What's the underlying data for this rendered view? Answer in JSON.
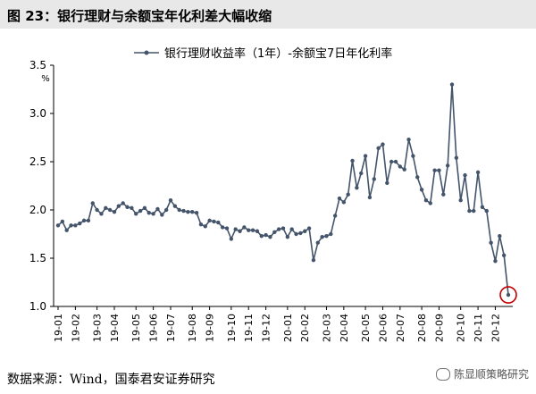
{
  "figure": {
    "title": "图 23：银行理财与余额宝年化利差大幅收缩",
    "source": "数据来源：Wind，国泰君安证券研究",
    "watermark": "陈显顺策略研究"
  },
  "chart_data": {
    "type": "line",
    "title": "",
    "ylabel": "",
    "ylabel_unit": "%",
    "ylim": [
      1.0,
      3.5
    ],
    "yticks": [
      "1.0",
      "1.5",
      "2.0",
      "2.5",
      "3.0",
      "3.5"
    ],
    "xticks": [
      "19-01",
      "19-02",
      "19-03",
      "19-04",
      "19-05",
      "19-06",
      "19-07",
      "19-08",
      "19-09",
      "19-10",
      "19-11",
      "19-12",
      "20-01",
      "20-02",
      "20-03",
      "20-04",
      "20-05",
      "20-06",
      "20-07",
      "20-08",
      "20-09",
      "20-10",
      "20-11",
      "20-12"
    ],
    "legend": "top-center",
    "grid": false,
    "highlight_last_point": true,
    "series": [
      {
        "name": "银行理财收益率（1年）-余额宝7日年化利率",
        "color": "#44546a",
        "values": [
          1.84,
          1.88,
          1.79,
          1.84,
          1.84,
          1.86,
          1.89,
          1.89,
          2.07,
          2.0,
          1.96,
          2.02,
          2.0,
          1.98,
          2.04,
          2.07,
          2.03,
          2.02,
          1.96,
          1.99,
          2.02,
          1.97,
          1.96,
          2.01,
          1.95,
          2.0,
          2.1,
          2.04,
          2.0,
          1.99,
          1.98,
          1.98,
          1.97,
          1.85,
          1.83,
          1.89,
          1.88,
          1.87,
          1.82,
          1.81,
          1.7,
          1.8,
          1.78,
          1.82,
          1.79,
          1.79,
          1.78,
          1.73,
          1.74,
          1.72,
          1.77,
          1.8,
          1.81,
          1.72,
          1.8,
          1.75,
          1.76,
          1.78,
          1.81,
          1.48,
          1.66,
          1.72,
          1.73,
          1.75,
          1.94,
          2.12,
          2.08,
          2.16,
          2.51,
          2.23,
          2.38,
          2.56,
          2.13,
          2.32,
          2.64,
          2.68,
          2.28,
          2.5,
          2.5,
          2.45,
          2.42,
          2.73,
          2.56,
          2.34,
          2.21,
          2.1,
          2.07,
          2.41,
          2.41,
          2.16,
          2.46,
          3.3,
          2.54,
          2.1,
          2.36,
          1.99,
          1.99,
          2.39,
          2.03,
          1.99,
          1.66,
          1.47,
          1.73,
          1.53,
          1.12
        ]
      }
    ]
  }
}
